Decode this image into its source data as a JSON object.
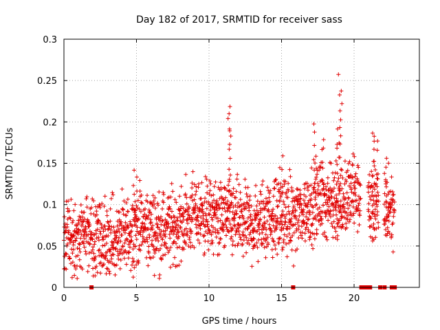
{
  "chart_data": {
    "type": "scatter",
    "title": "Day 182 of 2017, SRMTID for receiver sass",
    "xlabel": "GPS time / hours",
    "ylabel": "SRMTID / TECUs",
    "xlim": [
      0,
      24.5
    ],
    "ylim": [
      0,
      0.3
    ],
    "x_ticks": [
      0,
      5,
      10,
      15,
      20
    ],
    "y_ticks": [
      0,
      0.05,
      0.1,
      0.15,
      0.2,
      0.25,
      0.3
    ],
    "x_tick_labels": [
      "0",
      "5",
      "10",
      "15",
      "20"
    ],
    "y_tick_labels": [
      "0",
      "0.05",
      "0.1",
      "0.15",
      "0.2",
      "0.25",
      "0.3"
    ],
    "grid": true,
    "marker": "plus",
    "color": "#e00000",
    "series": [
      {
        "name": "SRMTID",
        "trend": [
          [
            0.0,
            0.06
          ],
          [
            1.0,
            0.058
          ],
          [
            2.0,
            0.06
          ],
          [
            3.0,
            0.055
          ],
          [
            4.0,
            0.058
          ],
          [
            5.0,
            0.075
          ],
          [
            6.0,
            0.072
          ],
          [
            7.0,
            0.07
          ],
          [
            8.0,
            0.075
          ],
          [
            9.0,
            0.09
          ],
          [
            10.0,
            0.085
          ],
          [
            11.0,
            0.085
          ],
          [
            12.0,
            0.08
          ],
          [
            13.0,
            0.075
          ],
          [
            14.0,
            0.085
          ],
          [
            15.0,
            0.085
          ],
          [
            16.0,
            0.085
          ],
          [
            17.0,
            0.1
          ],
          [
            18.0,
            0.105
          ],
          [
            19.0,
            0.1
          ],
          [
            20.0,
            0.115
          ],
          [
            21.0,
            0.1
          ],
          [
            22.0,
            0.09
          ],
          [
            22.8,
            0.095
          ]
        ],
        "spread": 0.022,
        "gaps": [
          [
            20.45,
            20.95
          ],
          [
            21.7,
            22.05
          ]
        ],
        "peaks": [
          {
            "x": 4.9,
            "y": 0.14
          },
          {
            "x": 11.4,
            "y": 0.222
          },
          {
            "x": 11.5,
            "y": 0.21
          },
          {
            "x": 15.0,
            "y": 0.155
          },
          {
            "x": 17.3,
            "y": 0.2
          },
          {
            "x": 17.8,
            "y": 0.183
          },
          {
            "x": 18.8,
            "y": 0.188
          },
          {
            "x": 19.0,
            "y": 0.255
          },
          {
            "x": 19.05,
            "y": 0.24
          },
          {
            "x": 21.3,
            "y": 0.188
          },
          {
            "x": 21.5,
            "y": 0.185
          },
          {
            "x": 22.3,
            "y": 0.16
          }
        ],
        "zero_points": [
          1.9,
          15.8,
          20.5,
          20.7,
          20.9,
          21.1,
          21.8,
          22.1,
          22.6,
          22.8
        ]
      }
    ]
  }
}
